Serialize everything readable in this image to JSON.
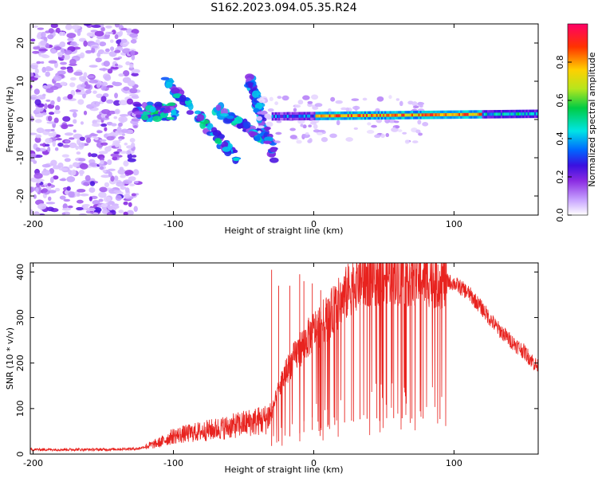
{
  "title": "S162.2023.094.05.35.R24",
  "chart_data": [
    {
      "type": "heatmap",
      "title": "S162.2023.094.05.35.R24",
      "xlabel": "Height of straight line (km)",
      "ylabel": "Frequency (Hz)",
      "xlim": [
        -202,
        160
      ],
      "ylim": [
        -25,
        25
      ],
      "x_ticks": [
        -200,
        -100,
        0,
        100
      ],
      "x_tick_labels": [
        "-200",
        "-100",
        "0",
        "100"
      ],
      "y_ticks": [
        -20,
        -10,
        0,
        10,
        20
      ],
      "y_tick_labels": [
        "-20",
        "-10",
        "0",
        "10",
        "20"
      ],
      "colorbar": {
        "label": "Normalized spectral amplitude",
        "range": [
          0,
          1
        ],
        "ticks": [
          0.0,
          0.2,
          0.4,
          0.6,
          0.8
        ],
        "tick_labels": [
          "0.0",
          "0.2",
          "0.4",
          "0.6",
          "0.8"
        ],
        "colors": [
          "#ffffff",
          "#c7a2ff",
          "#8a2be2",
          "#3a10e0",
          "#0066ff",
          "#00e5e5",
          "#00cc44",
          "#b5e61d",
          "#ffd000",
          "#ff3300",
          "#ff0066"
        ]
      },
      "features": {
        "noise_region": {
          "x": [
            -202,
            -125
          ],
          "y": [
            -25,
            25
          ],
          "amplitude": 0.25
        },
        "cluster_low": {
          "x": [
            -127,
            -98
          ],
          "y": [
            0,
            4
          ],
          "amplitude": 0.45
        },
        "descending_tracks": [
          {
            "x": [
              -105,
              -55
            ],
            "y": [
              10,
              -10
            ],
            "amplitude": 0.45
          },
          {
            "x": [
              -70,
              -35
            ],
            "y": [
              3,
              -5
            ],
            "amplitude": 0.4
          },
          {
            "x": [
              -45,
              -28
            ],
            "y": [
              10,
              -10
            ],
            "amplitude": 0.35
          }
        ],
        "carrier_line": {
          "x": [
            -30,
            160
          ],
          "y": [
            0.8,
            1.5
          ],
          "peak_x": [
            0,
            120
          ],
          "amplitude": 0.85
        }
      }
    },
    {
      "type": "line",
      "xlabel": "Height of straight line (km)",
      "ylabel": "SNR (10 * v/v)",
      "xlim": [
        -202,
        160
      ],
      "ylim": [
        0,
        420
      ],
      "x_ticks": [
        -200,
        -100,
        0,
        100
      ],
      "x_tick_labels": [
        "-200",
        "-100",
        "0",
        "100"
      ],
      "y_ticks": [
        0,
        100,
        200,
        300,
        400
      ],
      "y_tick_labels": [
        "0",
        "100",
        "200",
        "300",
        "400"
      ],
      "series": [
        {
          "color": "#e8231f",
          "envelope": {
            "x": [
              -202,
              -180,
              -150,
              -125,
              -110,
              -100,
              -80,
              -60,
              -45,
              -35,
              -30,
              -25,
              -20,
              -10,
              0,
              10,
              20,
              30,
              40,
              50,
              60,
              70,
              80,
              90,
              100,
              110,
              120,
              130,
              140,
              150,
              160
            ],
            "y": [
              10,
              10,
              10,
              12,
              25,
              40,
              50,
              60,
              70,
              75,
              90,
              140,
              180,
              230,
              270,
              300,
              340,
              380,
              390,
              395,
              395,
              390,
              390,
              385,
              375,
              355,
              320,
              280,
              250,
              225,
              190
            ]
          },
          "spikes": [
            {
              "x": -30,
              "y": 405
            },
            {
              "x": -25,
              "y": 370
            },
            {
              "x": -17,
              "y": 370
            },
            {
              "x": -10,
              "y": 395
            },
            {
              "x": -7,
              "y": 380
            },
            {
              "x": -1,
              "y": 375
            },
            {
              "x": 5,
              "y": 360
            },
            {
              "x": 10,
              "y": 340
            },
            {
              "x": 15,
              "y": 360
            },
            {
              "x": 22,
              "y": 380
            },
            {
              "x": 27,
              "y": 400
            },
            {
              "x": 33,
              "y": 380
            },
            {
              "x": 38,
              "y": 400
            },
            {
              "x": 45,
              "y": 405
            },
            {
              "x": 52,
              "y": 410
            },
            {
              "x": 57,
              "y": 410
            },
            {
              "x": 63,
              "y": 405
            },
            {
              "x": 70,
              "y": 400
            },
            {
              "x": 78,
              "y": 395
            },
            {
              "x": 90,
              "y": 385
            }
          ]
        }
      ]
    }
  ]
}
